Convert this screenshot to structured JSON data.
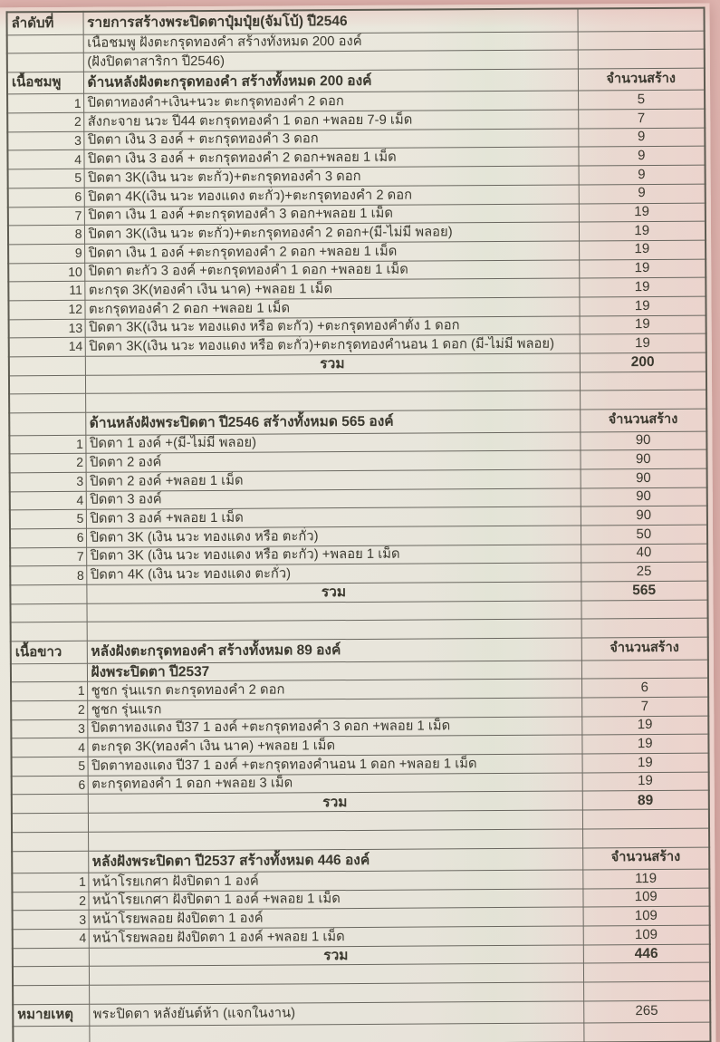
{
  "table": {
    "corner_label": "ลำดับที่",
    "title": "รายการสร้างพระปิดตาปุ๋มปุ๋ย(จัมโบ้) ปี2546",
    "subtitle1": "เนื้อชมพู ฝังตะกรุดทองคำ  สร้างทั้งหมด  200 องค์",
    "subtitle2": "(ฝังปิดตาสาริกา ปี2546)",
    "count_column_header": "จำนวนสร้าง",
    "total_label": "รวม",
    "sections": [
      {
        "side_label": "เนื้อชมพู",
        "title": "ด้านหลังฝังตะกรุดทองคำ สร้างทั้งหมด   200   องค์",
        "subheader": null,
        "items": [
          {
            "no": "1",
            "desc": "ปิดตาทองคำ+เงิน+นวะ  ตะกรุดทองคำ 2 ดอก",
            "qty": "5"
          },
          {
            "no": "2",
            "desc": "สังกะจาย นวะ ปี44 ตะกรุดทองคำ 1 ดอก +พลอย 7-9 เม็ด",
            "qty": "7"
          },
          {
            "no": "3",
            "desc": "ปิดตา เงิน 3 องค์ + ตะกรุดทองคำ 3 ดอก",
            "qty": "9"
          },
          {
            "no": "4",
            "desc": "ปิดตา เงิน 3 องค์ + ตะกรุดทองคำ 2 ดอก+พลอย 1 เม็ด",
            "qty": "9"
          },
          {
            "no": "5",
            "desc": "ปิดตา 3K(เงิน นวะ ตะกั่ว)+ตะกรุดทองคำ 3 ดอก",
            "qty": "9"
          },
          {
            "no": "6",
            "desc": "ปิดตา 4K(เงิน นวะ  ทองแดง ตะกั่ว)+ตะกรุดทองคำ 2 ดอก",
            "qty": "9"
          },
          {
            "no": "7",
            "desc": "ปิดตา เงิน 1 องค์ +ตะกรุดทองคำ 3 ดอก+พลอย 1 เม็ด",
            "qty": "19"
          },
          {
            "no": "8",
            "desc": "ปิดตา 3K(เงิน นวะ ตะกั่ว)+ตะกรุดทองคำ 2 ดอก+(มี-ไม่มี พลอย)",
            "qty": "19"
          },
          {
            "no": "9",
            "desc": "ปิดตา เงิน 1 องค์ +ตะกรุดทองคำ 2 ดอก +พลอย 1 เม็ด",
            "qty": "19"
          },
          {
            "no": "10",
            "desc": "ปิดตา ตะกั่ว 3 องค์ +ตะกรุดทองคำ 1 ดอก +พลอย 1 เม็ด",
            "qty": "19"
          },
          {
            "no": "11",
            "desc": "ตะกรุด 3K(ทองคำ เงิน นาค) +พลอย 1 เม็ด",
            "qty": "19"
          },
          {
            "no": "12",
            "desc": "ตะกรุดทองคำ 2 ดอก +พลอย 1 เม็ด",
            "qty": "19"
          },
          {
            "no": "13",
            "desc": "ปิดตา 3K(เงิน นวะ ทองแดง หรือ ตะกั่ว) +ตะกรุดทองคำตั้ง 1 ดอก",
            "qty": "19"
          },
          {
            "no": "14",
            "desc": "ปิดตา 3K(เงิน นวะ ทองแดง หรือ ตะกั่ว)+ตะกรุดทองคำนอน 1 ดอก (มี-ไม่มี พลอย)",
            "qty": "19"
          }
        ],
        "total": "200",
        "spacers_after": 2
      },
      {
        "side_label": "",
        "title": "ด้านหลังฝังพระปิดตา ปี2546 สร้างทั้งหมด 565 องค์",
        "subheader": null,
        "items": [
          {
            "no": "1",
            "desc": "ปิดตา 1 องค์ +(มี-ไม่มี พลอย)",
            "qty": "90"
          },
          {
            "no": "2",
            "desc": "ปิดตา 2 องค์",
            "qty": "90"
          },
          {
            "no": "3",
            "desc": "ปิดตา 2 องค์ +พลอย 1 เม็ด",
            "qty": "90"
          },
          {
            "no": "4",
            "desc": "ปิดตา 3 องค์",
            "qty": "90"
          },
          {
            "no": "5",
            "desc": "ปิดตา 3 องค์ +พลอย 1 เม็ด",
            "qty": "90"
          },
          {
            "no": "6",
            "desc": "ปิดตา 3K (เงิน นวะ ทองแดง หรือ ตะกั่ว)",
            "qty": "50"
          },
          {
            "no": "7",
            "desc": "ปิดตา 3K (เงิน นวะ ทองแดง หรือ ตะกั่ว) +พลอย 1 เม็ด",
            "qty": "40"
          },
          {
            "no": "8",
            "desc": "ปิดตา 4K (เงิน นวะ ทองแดง ตะกั่ว)",
            "qty": "25"
          }
        ],
        "total": "565",
        "spacers_after": 2
      },
      {
        "side_label": "เนื้อขาว",
        "title": "หลังฝังตะกรุดทองคำ สร้างทั้งหมด 89 องค์",
        "subheader": "ฝังพระปิดตา ปี2537",
        "items": [
          {
            "no": "1",
            "desc": "ชูชก รุ่นแรก ตะกรุดทองคำ 2 ดอก",
            "qty": "6"
          },
          {
            "no": "2",
            "desc": "ชูชก รุ่นแรก",
            "qty": "7"
          },
          {
            "no": "3",
            "desc": "ปิดตาทองแดง ปี37 1 องค์ +ตะกรุดทองคำ 3 ดอก +พลอย 1 เม็ด",
            "qty": "19"
          },
          {
            "no": "4",
            "desc": "ตะกรุด 3K(ทองคำ เงิน นาค) +พลอย 1 เม็ด",
            "qty": "19"
          },
          {
            "no": "5",
            "desc": "ปิดตาทองแดง ปี37 1 องค์ +ตะกรุดทองคำนอน 1 ดอก +พลอย 1 เม็ด",
            "qty": "19"
          },
          {
            "no": "6",
            "desc": "ตะกรุดทองคำ 1 ดอก +พลอย 3 เม็ด",
            "qty": "19"
          }
        ],
        "total": "89",
        "spacers_after": 2
      },
      {
        "side_label": "",
        "title": "หลังฝังพระปิดตา ปี2537  สร้างทั้งหมด 446 องค์",
        "subheader": null,
        "items": [
          {
            "no": "1",
            "desc": "หน้าโรยเกศา ฝังปิดตา 1 องค์",
            "qty": "119"
          },
          {
            "no": "2",
            "desc": "หน้าโรยเกศา ฝังปิดตา 1 องค์ +พลอย 1 เม็ด",
            "qty": "109"
          },
          {
            "no": "3",
            "desc": "หน้าโรยพลอย ฝังปิดตา 1 องค์",
            "qty": "109"
          },
          {
            "no": "4",
            "desc": "หน้าโรยพลอย ฝังปิดตา 1 องค์ +พลอย 1 เม็ด",
            "qty": "109"
          }
        ],
        "total": "446",
        "spacers_after": 2
      }
    ],
    "note": {
      "label": "หมายเหตุ",
      "desc": "พระปิดตา หลังยันต์ห้า (แจกในงาน)",
      "qty": "265"
    }
  },
  "colors": {
    "paper": "#e9e6dc",
    "background_pink": "#ddb2ad",
    "ink": "#3b392f",
    "grid_line": "#6a6860"
  }
}
